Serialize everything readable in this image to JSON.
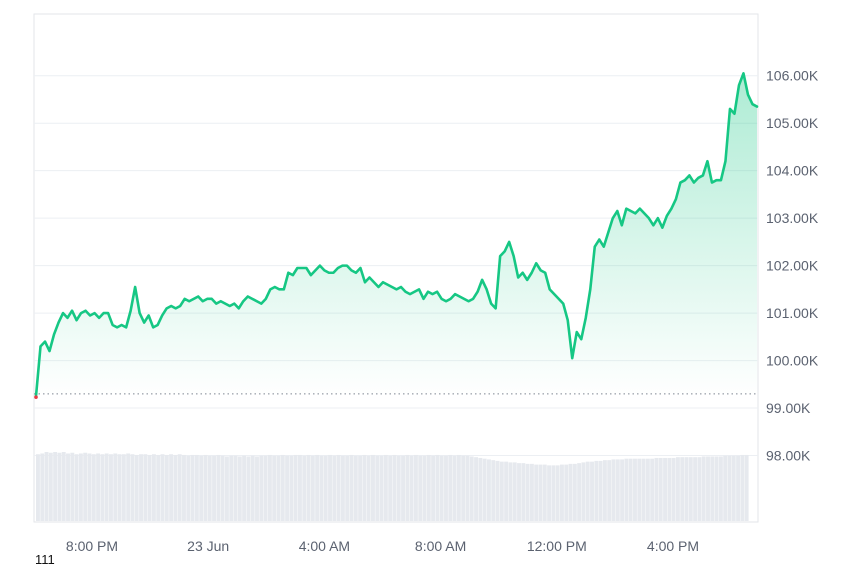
{
  "chart_data": {
    "type": "area",
    "title": "",
    "xlabel": "",
    "ylabel": "",
    "x_ticks": [
      "8:00 PM",
      "23 Jun",
      "4:00 AM",
      "8:00 AM",
      "12:00 PM",
      "4:00 PM"
    ],
    "y_ticks": [
      "98.00K",
      "99.00K",
      "100.00K",
      "101.00K",
      "102.00K",
      "103.00K",
      "104.00K",
      "105.00K",
      "106.00K"
    ],
    "ylim": [
      96.6,
      107.3
    ],
    "y_axis_position": "right",
    "grid": true,
    "reference_line": {
      "value": 99.3,
      "style": "dotted"
    },
    "colors": {
      "line": "#16c784",
      "area_top": "#16c784",
      "grid": "#eceff3",
      "volume": "#e6e9ee",
      "ref_line": "#7f8792"
    },
    "series": [
      {
        "values": [
          99.25,
          100.3,
          100.4,
          100.2,
          100.55,
          100.8,
          101.0,
          100.9,
          101.05,
          100.85,
          101.0,
          101.05,
          100.95,
          101.0,
          100.9,
          101.0,
          101.0,
          100.75,
          100.7,
          100.75,
          100.7,
          101.05,
          101.55,
          101.0,
          100.8,
          100.95,
          100.7,
          100.75,
          100.95,
          101.1,
          101.15,
          101.1,
          101.15,
          101.3,
          101.25,
          101.3,
          101.35,
          101.25,
          101.3,
          101.3,
          101.2,
          101.25,
          101.2,
          101.15,
          101.2,
          101.1,
          101.25,
          101.35,
          101.3,
          101.25,
          101.2,
          101.3,
          101.5,
          101.55,
          101.5,
          101.5,
          101.85,
          101.8,
          101.95,
          101.95,
          101.95,
          101.8,
          101.9,
          102.0,
          101.9,
          101.85,
          101.85,
          101.95,
          102.0,
          102.0,
          101.9,
          101.85,
          101.95,
          101.65,
          101.75,
          101.65,
          101.55,
          101.65,
          101.6,
          101.55,
          101.5,
          101.55,
          101.45,
          101.4,
          101.45,
          101.5,
          101.3,
          101.45,
          101.4,
          101.45,
          101.3,
          101.25,
          101.3,
          101.4,
          101.35,
          101.3,
          101.25,
          101.3,
          101.45,
          101.7,
          101.5,
          101.2,
          101.1,
          102.2,
          102.3,
          102.5,
          102.2,
          101.75,
          101.85,
          101.7,
          101.85,
          102.05,
          101.9,
          101.85,
          101.5,
          101.4,
          101.3,
          101.2,
          100.85,
          100.05,
          100.6,
          100.45,
          100.9,
          101.5,
          102.4,
          102.55,
          102.4,
          102.7,
          103.0,
          103.15,
          102.85,
          103.2,
          103.15,
          103.1,
          103.2,
          103.1,
          103.0,
          102.85,
          103.0,
          102.8,
          103.05,
          103.2,
          103.4,
          103.75,
          103.8,
          103.9,
          103.75,
          103.85,
          103.9,
          104.2,
          103.75,
          103.8,
          103.8,
          104.2,
          105.3,
          105.2,
          105.8,
          106.05,
          105.6,
          105.4,
          105.35
        ]
      }
    ],
    "volume": [
      0.9,
      0.91,
      0.93,
      0.92,
      0.93,
      0.92,
      0.93,
      0.91,
      0.92,
      0.9,
      0.91,
      0.92,
      0.91,
      0.9,
      0.91,
      0.9,
      0.91,
      0.9,
      0.91,
      0.9,
      0.9,
      0.91,
      0.9,
      0.89,
      0.9,
      0.9,
      0.89,
      0.9,
      0.89,
      0.9,
      0.89,
      0.9,
      0.89,
      0.9,
      0.89,
      0.88,
      0.89,
      0.89,
      0.88,
      0.89,
      0.88,
      0.88,
      0.89,
      0.88,
      0.87,
      0.88,
      0.88,
      0.87,
      0.88,
      0.87,
      0.88,
      0.87,
      0.88,
      0.88,
      0.89,
      0.88,
      0.88,
      0.89,
      0.88,
      0.88,
      0.89,
      0.89,
      0.88,
      0.89,
      0.88,
      0.89,
      0.88,
      0.88,
      0.89,
      0.88,
      0.89,
      0.88,
      0.88,
      0.89,
      0.88,
      0.88,
      0.89,
      0.88,
      0.89,
      0.88,
      0.88,
      0.89,
      0.88,
      0.89,
      0.88,
      0.88,
      0.89,
      0.88,
      0.89,
      0.88,
      0.88,
      0.89,
      0.88,
      0.89,
      0.88,
      0.88,
      0.89,
      0.88,
      0.89,
      0.88,
      0.88,
      0.87,
      0.86,
      0.85,
      0.84,
      0.83,
      0.82,
      0.81,
      0.8,
      0.8,
      0.79,
      0.79,
      0.78,
      0.78,
      0.77,
      0.77,
      0.76,
      0.76,
      0.76,
      0.75,
      0.75,
      0.75,
      0.76,
      0.76,
      0.77,
      0.77,
      0.78,
      0.79,
      0.8,
      0.8,
      0.81,
      0.81,
      0.82,
      0.82,
      0.83,
      0.83,
      0.83,
      0.84,
      0.84,
      0.84,
      0.84,
      0.84,
      0.84,
      0.84,
      0.85,
      0.85,
      0.85,
      0.85,
      0.85,
      0.86,
      0.86,
      0.86,
      0.86,
      0.86,
      0.86,
      0.87,
      0.87,
      0.87,
      0.87,
      0.87,
      0.88,
      0.88,
      0.88,
      0.88,
      0.89,
      0.89
    ]
  },
  "footer": {
    "number": "111"
  }
}
